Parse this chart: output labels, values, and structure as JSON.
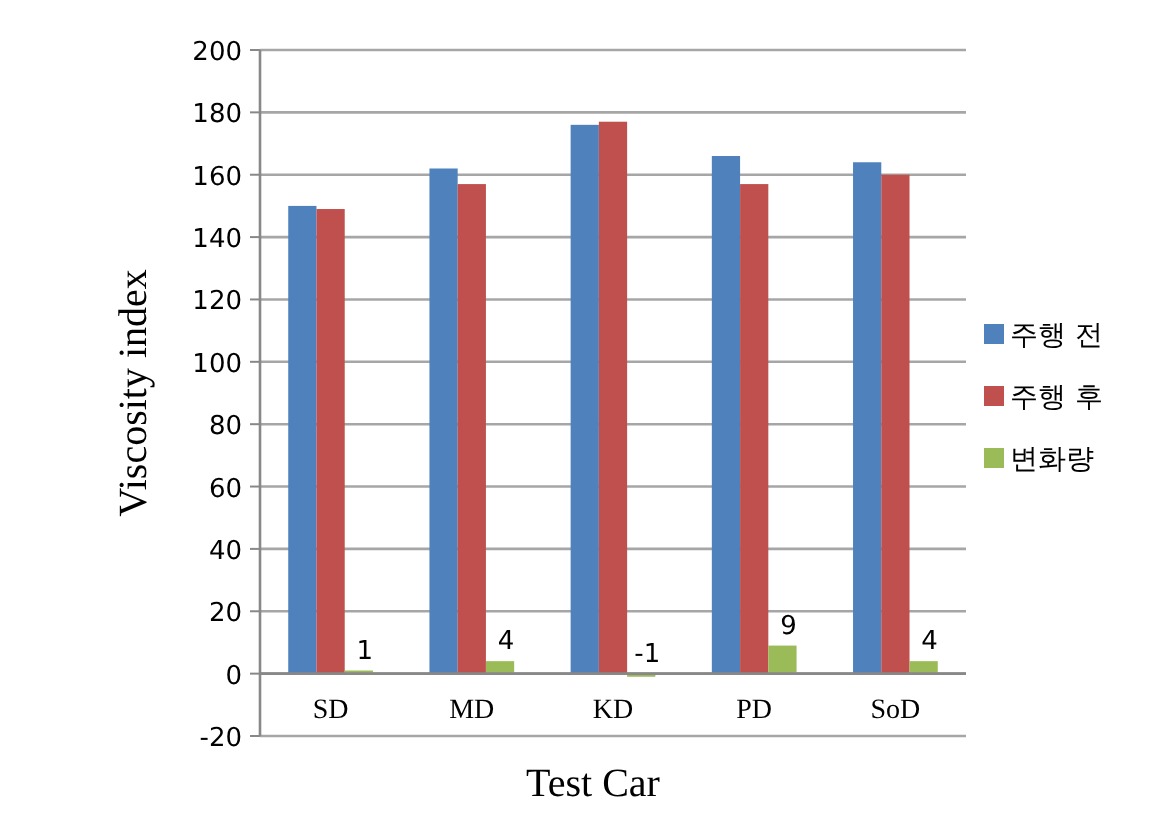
{
  "chart_data": {
    "type": "bar",
    "xlabel": "Test Car",
    "ylabel": "Viscosity index",
    "categories": [
      "SD",
      "MD",
      "KD",
      "PD",
      "SoD"
    ],
    "series": [
      {
        "name": "주행 전",
        "color": "#4f81bd",
        "values": [
          150,
          162,
          176,
          166,
          164
        ]
      },
      {
        "name": "주행 후",
        "color": "#c0504d",
        "values": [
          149,
          157,
          177,
          157,
          160
        ]
      },
      {
        "name": "변화량",
        "color": "#9bbb59",
        "values": [
          1,
          4,
          -1,
          9,
          4
        ],
        "value_labels": [
          "1",
          "4",
          "-1",
          "9",
          "4"
        ]
      }
    ],
    "ylim": [
      -20,
      200
    ],
    "yticks": [
      -20,
      0,
      20,
      40,
      60,
      80,
      100,
      120,
      140,
      160,
      180,
      200
    ],
    "grid": "y",
    "legend": "right"
  }
}
